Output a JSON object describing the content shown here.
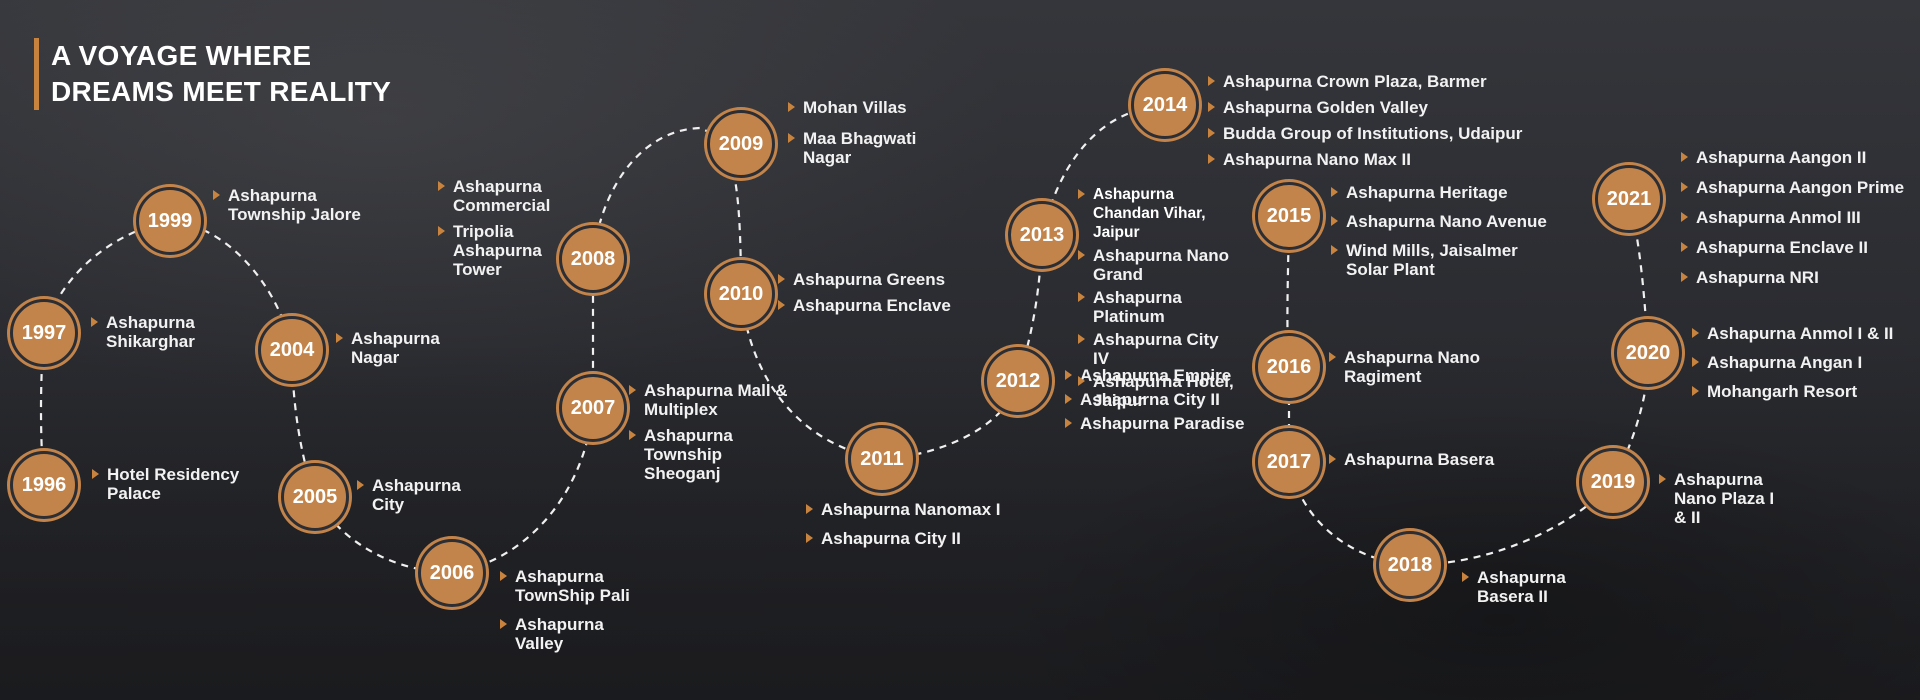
{
  "heading": {
    "line1": "A VOYAGE WHERE",
    "line2": "DREAMS MEET REALITY"
  },
  "accent_color": "#c2844a",
  "milestones": [
    {
      "year": "1996",
      "items": [
        "Hotel Residency Palace"
      ]
    },
    {
      "year": "1997",
      "items": [
        "Ashapurna Shikarghar"
      ]
    },
    {
      "year": "1999",
      "items": [
        "Ashapurna Township Jalore"
      ]
    },
    {
      "year": "2004",
      "items": [
        "Ashapurna Nagar"
      ]
    },
    {
      "year": "2005",
      "items": [
        "Ashapurna City"
      ]
    },
    {
      "year": "2006",
      "items": [
        "Ashapurna TownShip Pali",
        "Ashapurna Valley"
      ]
    },
    {
      "year": "2007",
      "items": [
        "Ashapurna Mall & Multiplex",
        "Ashapurna Township Sheoganj"
      ]
    },
    {
      "year": "2008",
      "items": [
        "Ashapurna Commercial",
        "Tripolia Ashapurna Tower"
      ]
    },
    {
      "year": "2009",
      "items": [
        "Mohan Villas",
        "Maa Bhagwati Nagar"
      ]
    },
    {
      "year": "2010",
      "items": [
        "Ashapurna Greens",
        "Ashapurna Enclave"
      ]
    },
    {
      "year": "2011",
      "items": [
        "Ashapurna Nanomax I",
        "Ashapurna City II"
      ]
    },
    {
      "year": "2012",
      "items": [
        "Ashapurna Empire",
        "Ashapurna City II",
        "Ashapurna Paradise"
      ]
    },
    {
      "year": "2013",
      "items": [
        "Ashapurna Chandan Vihar, Jaipur",
        "Ashapurna Nano Grand",
        "Ashapurna Platinum",
        "Ashapurna City IV",
        "Ashapurna Hotel, Jaipur"
      ]
    },
    {
      "year": "2014",
      "items": [
        "Ashapurna Crown Plaza, Barmer",
        "Ashapurna Golden Valley",
        "Budda Group of Institutions, Udaipur",
        "Ashapurna Nano Max II"
      ]
    },
    {
      "year": "2015",
      "items": [
        "Ashapurna Heritage",
        "Ashapurna Nano Avenue",
        "Wind Mills, Jaisalmer Solar Plant"
      ]
    },
    {
      "year": "2016",
      "items": [
        "Ashapurna Nano Ragiment"
      ]
    },
    {
      "year": "2017",
      "items": [
        "Ashapurna Basera"
      ]
    },
    {
      "year": "2018",
      "items": [
        "Ashapurna Basera II"
      ]
    },
    {
      "year": "2019",
      "items": [
        "Ashapurna Nano Plaza I & II"
      ]
    },
    {
      "year": "2020",
      "items": [
        "Ashapurna Anmol I & II",
        "Ashapurna Angan I",
        "Mohangarh Resort"
      ]
    },
    {
      "year": "2021",
      "items": [
        "Ashapurna Aangon II",
        "Ashapurna Aangon Prime",
        "Ashapurna Anmol III",
        "Ashapurna Enclave II",
        "Ashapurna NRI"
      ]
    }
  ]
}
